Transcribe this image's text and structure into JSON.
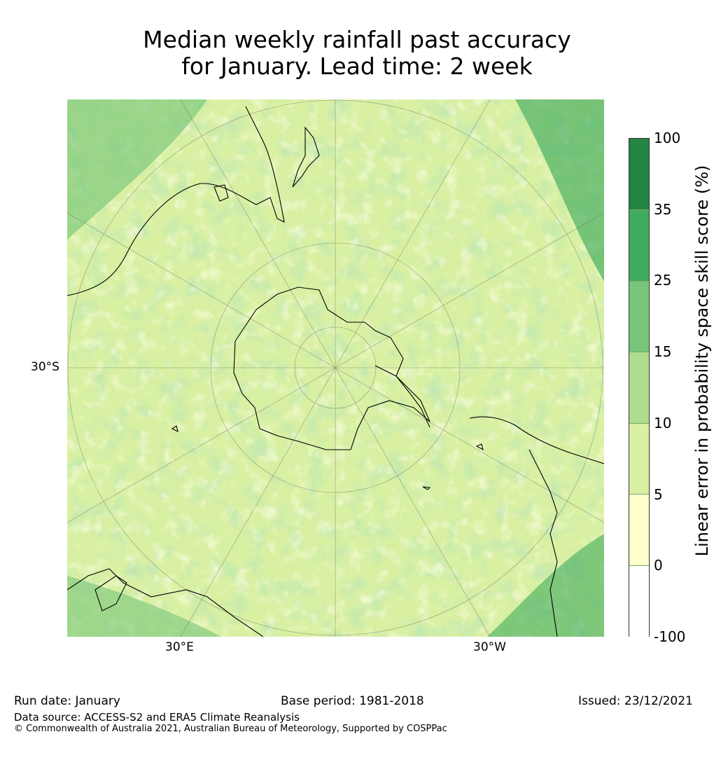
{
  "title_line1": "Median weekly rainfall past accuracy",
  "title_line2": "for January. Lead time: 2 week",
  "map": {
    "projection": "south-polar-stereographic",
    "latitude_label": "30°S",
    "longitude_labels": [
      "30°E",
      "30°W"
    ],
    "fill_color": "#d9f0a3",
    "palette": [
      "#ffffff",
      "#ffffcc",
      "#d9f0a3",
      "#addd8e",
      "#78c679",
      "#41ab5d",
      "#238443"
    ],
    "coastline_color": "#000000"
  },
  "colorbar": {
    "label": "Linear error in probability space skill score (%)",
    "ticks": [
      "100",
      "35",
      "25",
      "15",
      "10",
      "5",
      "0",
      "-100"
    ],
    "bins": [
      {
        "from": -100,
        "to": 0,
        "color": "#ffffff"
      },
      {
        "from": 0,
        "to": 5,
        "color": "#ffffcc"
      },
      {
        "from": 5,
        "to": 10,
        "color": "#d9f0a3"
      },
      {
        "from": 10,
        "to": 15,
        "color": "#addd8e"
      },
      {
        "from": 15,
        "to": 25,
        "color": "#78c679"
      },
      {
        "from": 25,
        "to": 35,
        "color": "#41ab5d"
      },
      {
        "from": 35,
        "to": 100,
        "color": "#238443"
      }
    ]
  },
  "footer": {
    "run_date": "Run date: January",
    "base_period": "Base period: 1981-2018",
    "issued": "Issued: 23/12/2021",
    "source": "Data source: ACCESS-S2 and ERA5 Climate Reanalysis",
    "copyright": "© Commonwealth of Australia 2021, Australian Bureau of Meteorology, Supported by COSPPac"
  }
}
